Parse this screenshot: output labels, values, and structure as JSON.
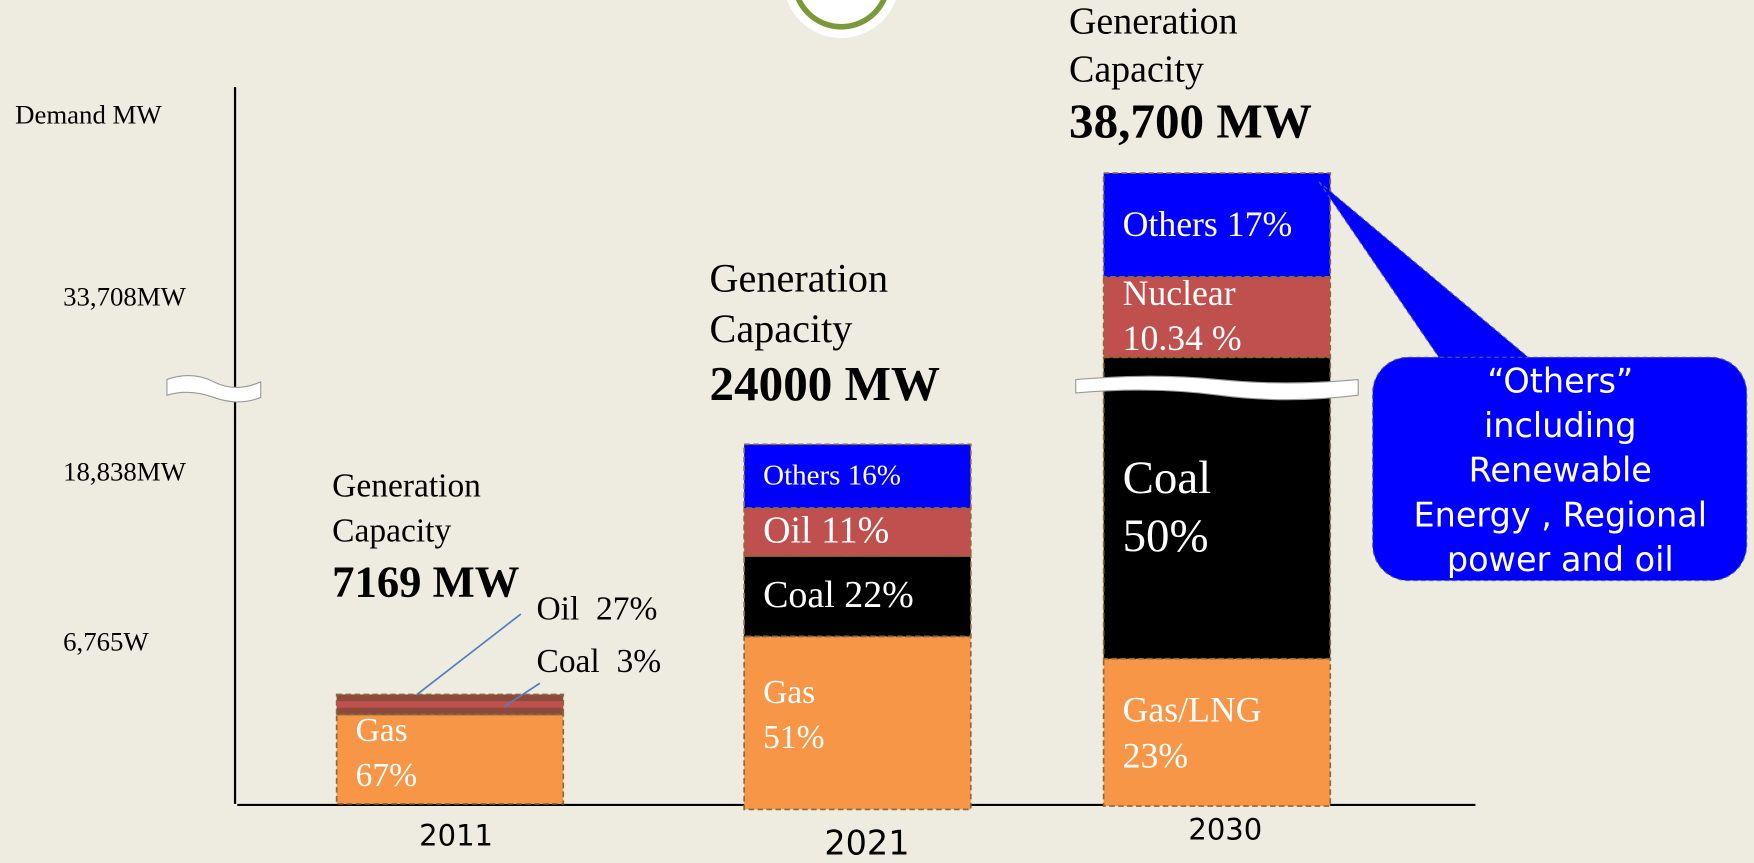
{
  "y_axis": {
    "label": "Demand MW",
    "ticks": [
      "33,708MW",
      "18,838MW",
      "6,765W"
    ]
  },
  "bars": [
    {
      "year": "2011",
      "caption": [
        "Generation",
        "Capacity"
      ],
      "total": "7169 MW",
      "segments": [
        {
          "label": [
            "Gas",
            "67%"
          ]
        },
        {
          "label": [
            "Coal  3%"
          ]
        },
        {
          "label": [
            "Oil  27%"
          ]
        }
      ]
    },
    {
      "year": "2021",
      "caption": [
        "Generation",
        "Capacity"
      ],
      "total": "24000 MW",
      "segments": [
        {
          "label": [
            "Gas",
            "51%"
          ]
        },
        {
          "label": [
            "Coal 22%"
          ]
        },
        {
          "label": [
            "Oil 11%"
          ]
        },
        {
          "label": [
            "Others 16%"
          ]
        }
      ]
    },
    {
      "year": "2030",
      "caption": [
        "Generation",
        "Capacity"
      ],
      "total": "38,700 MW",
      "segments": [
        {
          "label": [
            "Gas/LNG",
            "23%"
          ]
        },
        {
          "label": [
            "Coal",
            "50%"
          ]
        },
        {
          "label": [
            "Nuclear",
            "10.34 %"
          ]
        },
        {
          "label": [
            "Others 17%"
          ]
        }
      ]
    }
  ],
  "callout": [
    "“Others”",
    "including",
    "Renewable",
    "Energy , Regional",
    "power and oil"
  ]
}
